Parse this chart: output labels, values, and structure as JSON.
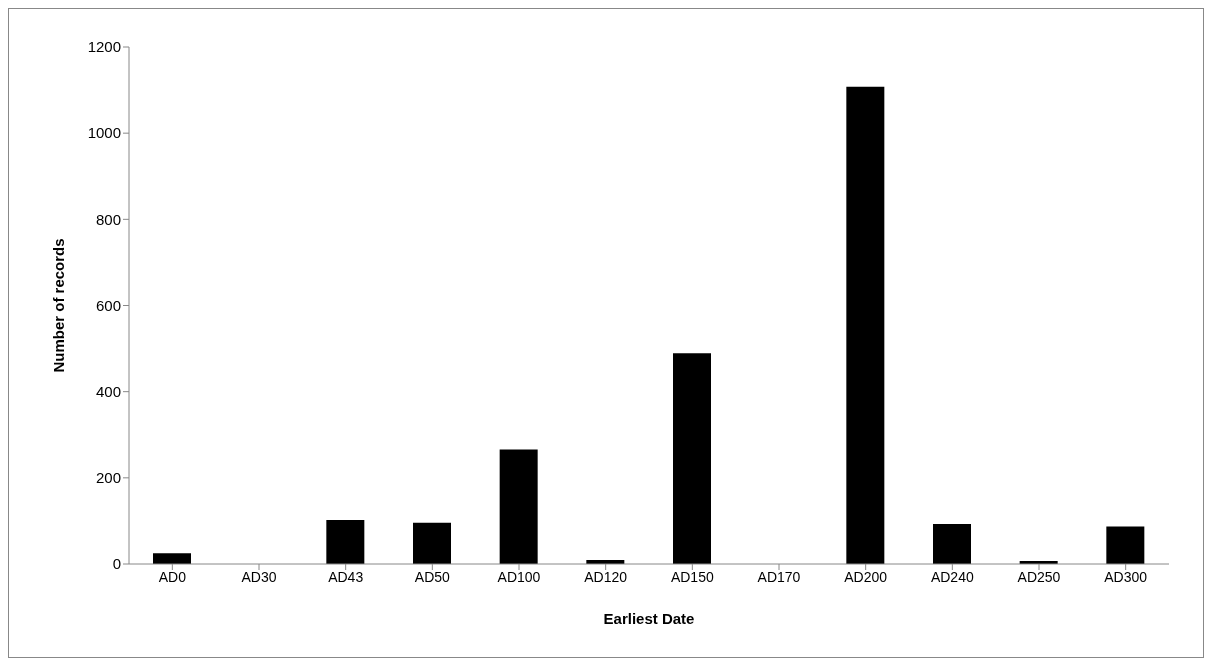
{
  "chart_data": {
    "type": "bar",
    "xlabel": "Earliest Date",
    "ylabel": "Number of records",
    "categories": [
      "AD0",
      "AD30",
      "AD43",
      "AD50",
      "AD100",
      "AD120",
      "AD150",
      "AD170",
      "AD200",
      "AD240",
      "AD250",
      "AD300"
    ],
    "values": [
      25,
      0,
      102,
      96,
      266,
      9,
      489,
      0,
      1108,
      93,
      7,
      87
    ],
    "color": "#000000",
    "ylim": [
      0,
      1200
    ],
    "yticks": [
      0,
      200,
      400,
      600,
      800,
      1000,
      1200
    ],
    "grid": false,
    "legend": false
  }
}
